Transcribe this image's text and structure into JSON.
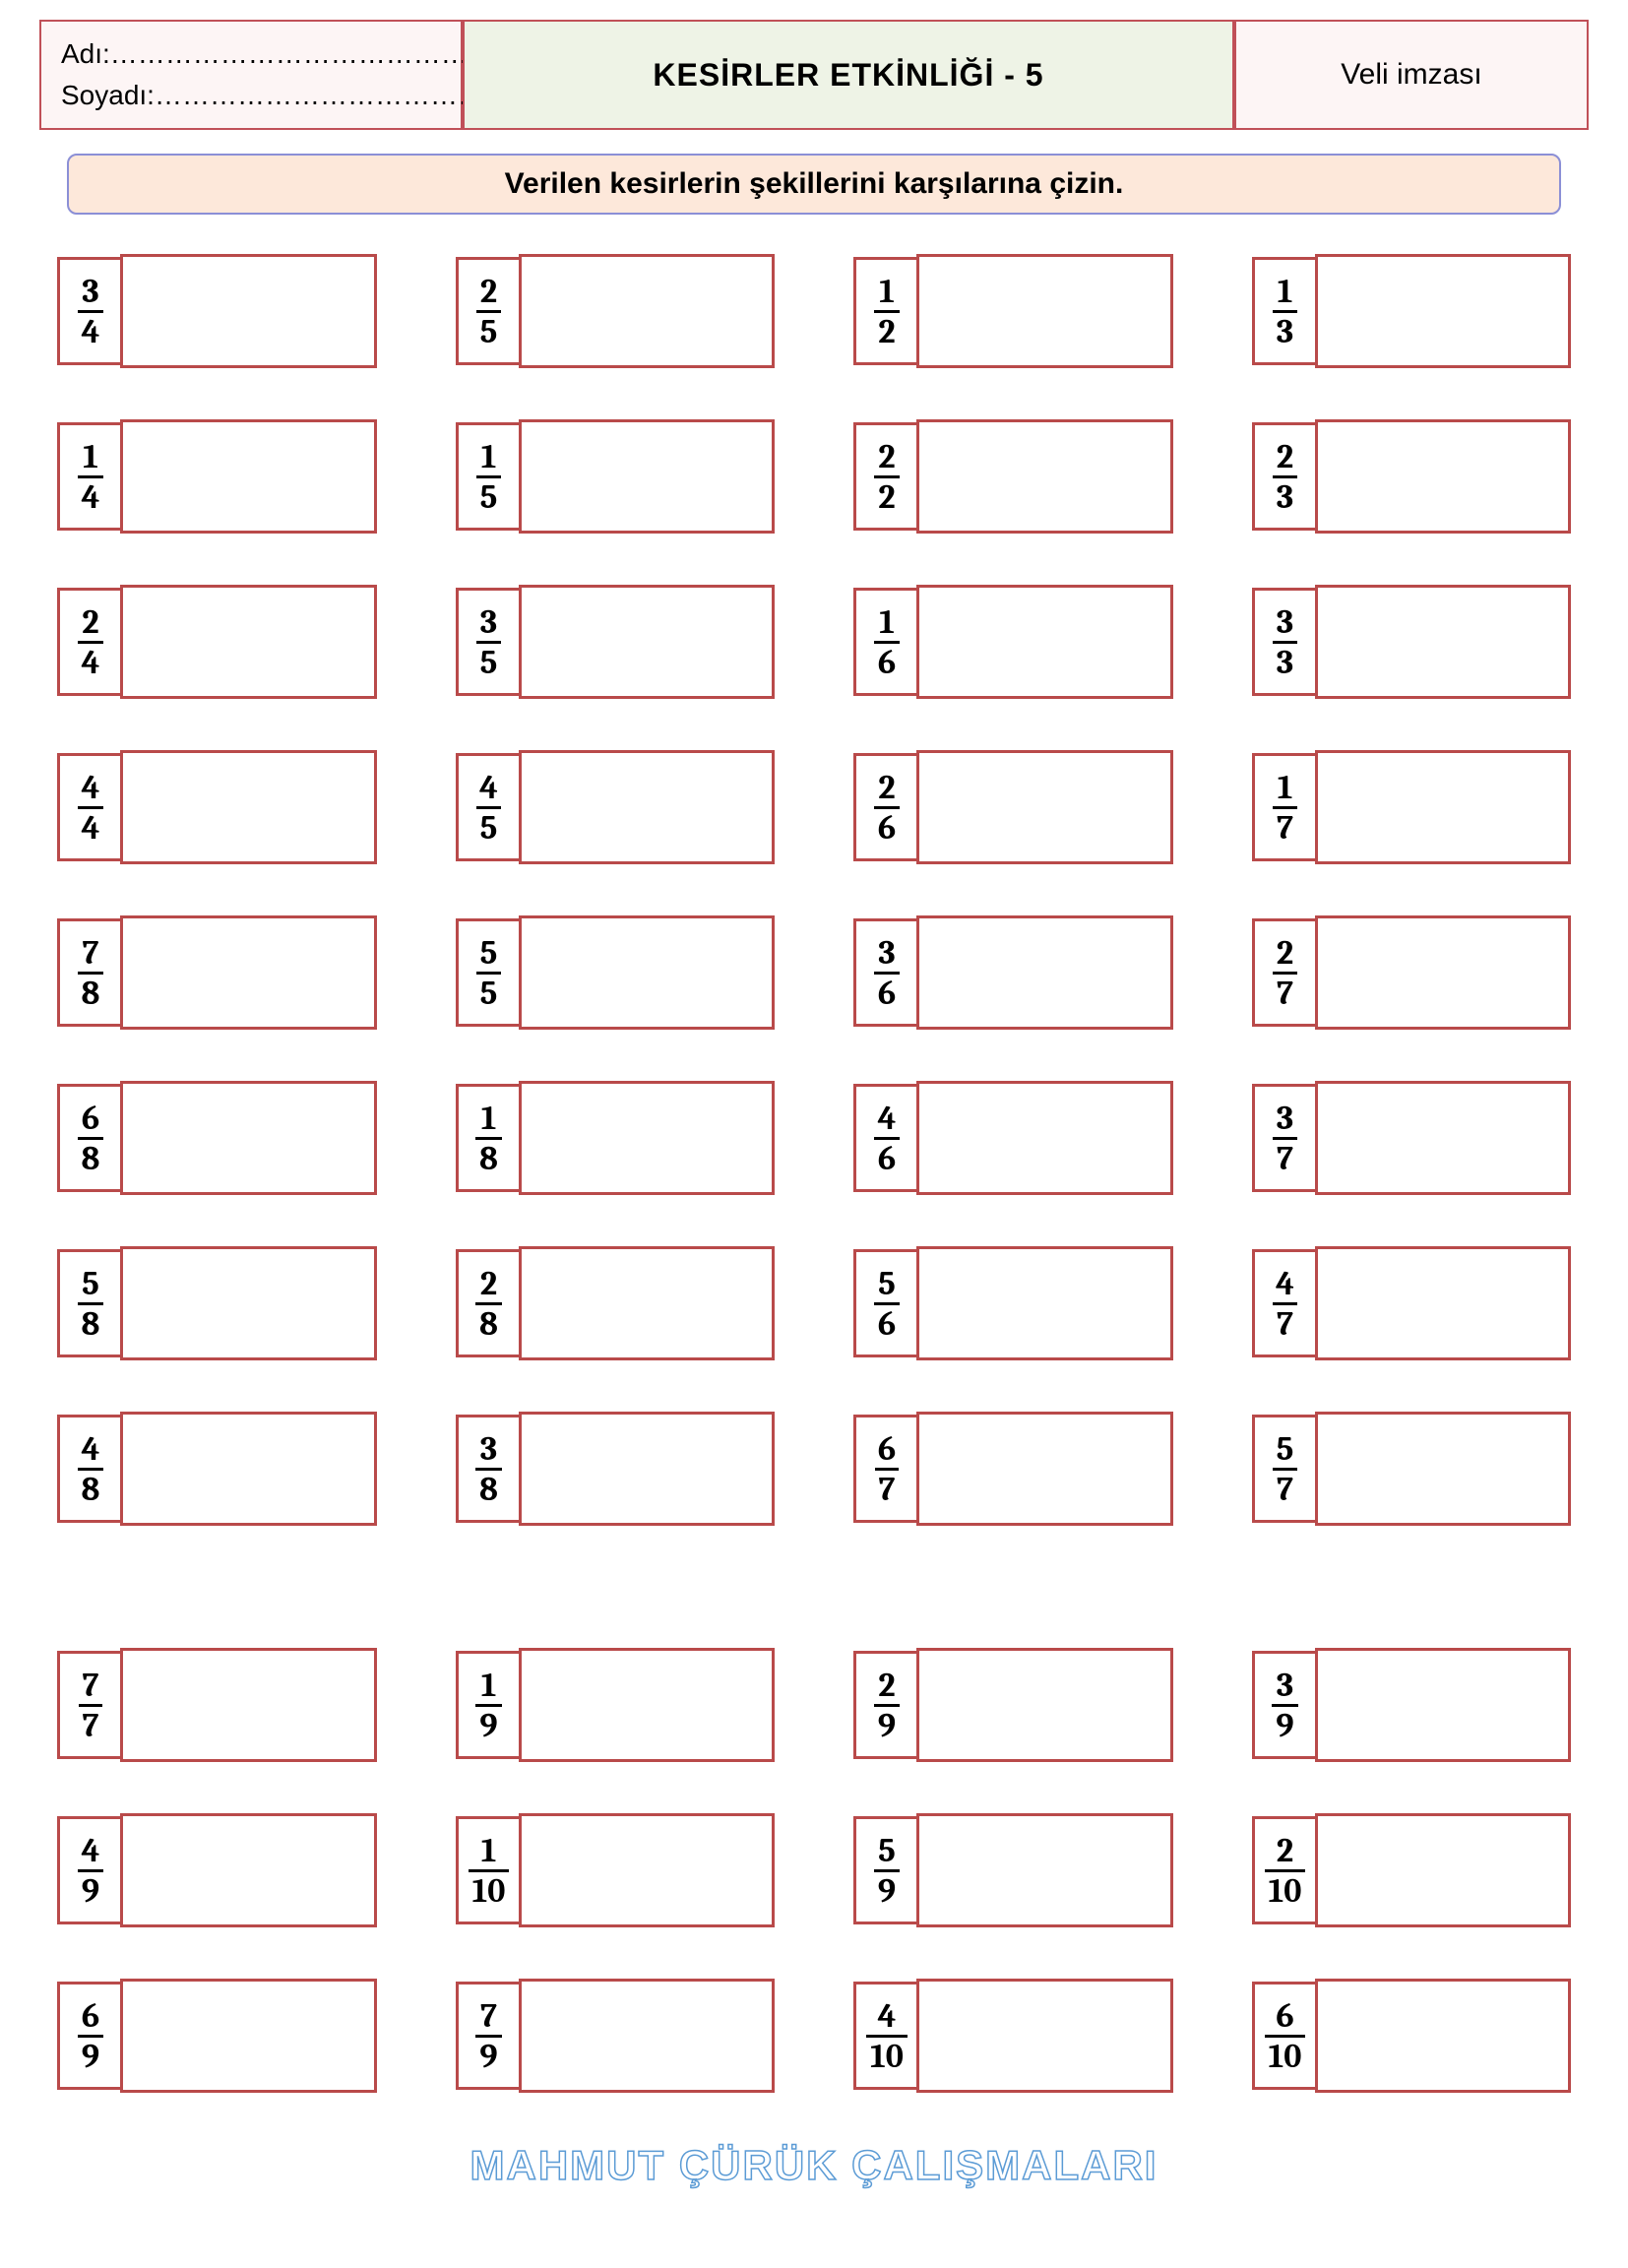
{
  "header": {
    "name_label": "Adı:……………………………………",
    "surname_label": "Soyadı:………………………………..",
    "title": "KESİRLER ETKİNLİĞİ - 5",
    "sign_label": "Veli imzası"
  },
  "instruction": "Verilen kesirlerin şekillerini karşılarına çizin.",
  "colors": {
    "box_border": "#b94a4a",
    "header_border": "#c05058",
    "header_name_bg": "#fdf5f5",
    "header_title_bg": "#eef3e6",
    "instruction_border": "#8b8fd6",
    "instruction_bg": "#fde8da",
    "footer_stroke": "#5b9bd5"
  },
  "layout": {
    "columns": 4,
    "rows": 11,
    "gap_after_row_index": 7
  },
  "fractions": {
    "rows": [
      [
        {
          "n": "3",
          "d": "4"
        },
        {
          "n": "2",
          "d": "5"
        },
        {
          "n": "1",
          "d": "2"
        },
        {
          "n": "1",
          "d": "3"
        }
      ],
      [
        {
          "n": "1",
          "d": "4"
        },
        {
          "n": "1",
          "d": "5"
        },
        {
          "n": "2",
          "d": "2"
        },
        {
          "n": "2",
          "d": "3"
        }
      ],
      [
        {
          "n": "2",
          "d": "4"
        },
        {
          "n": "3",
          "d": "5"
        },
        {
          "n": "1",
          "d": "6"
        },
        {
          "n": "3",
          "d": "3"
        }
      ],
      [
        {
          "n": "4",
          "d": "4"
        },
        {
          "n": "4",
          "d": "5"
        },
        {
          "n": "2",
          "d": "6"
        },
        {
          "n": "1",
          "d": "7"
        }
      ],
      [
        {
          "n": "7",
          "d": "8"
        },
        {
          "n": "5",
          "d": "5"
        },
        {
          "n": "3",
          "d": "6"
        },
        {
          "n": "2",
          "d": "7"
        }
      ],
      [
        {
          "n": "6",
          "d": "8"
        },
        {
          "n": "1",
          "d": "8"
        },
        {
          "n": "4",
          "d": "6"
        },
        {
          "n": "3",
          "d": "7"
        }
      ],
      [
        {
          "n": "5",
          "d": "8"
        },
        {
          "n": "2",
          "d": "8"
        },
        {
          "n": "5",
          "d": "6"
        },
        {
          "n": "4",
          "d": "7"
        }
      ],
      [
        {
          "n": "4",
          "d": "8"
        },
        {
          "n": "3",
          "d": "8"
        },
        {
          "n": "6",
          "d": "7"
        },
        {
          "n": "5",
          "d": "7"
        }
      ],
      [
        {
          "n": "7",
          "d": "7"
        },
        {
          "n": "1",
          "d": "9"
        },
        {
          "n": "2",
          "d": "9"
        },
        {
          "n": "3",
          "d": "9"
        }
      ],
      [
        {
          "n": "4",
          "d": "9"
        },
        {
          "n": "1",
          "d": "10"
        },
        {
          "n": "5",
          "d": "9"
        },
        {
          "n": "2",
          "d": "10"
        }
      ],
      [
        {
          "n": "6",
          "d": "9"
        },
        {
          "n": "7",
          "d": "9"
        },
        {
          "n": "4",
          "d": "10"
        },
        {
          "n": "6",
          "d": "10"
        }
      ]
    ]
  },
  "footer": "MAHMUT ÇÜRÜK ÇALIŞMALARI"
}
